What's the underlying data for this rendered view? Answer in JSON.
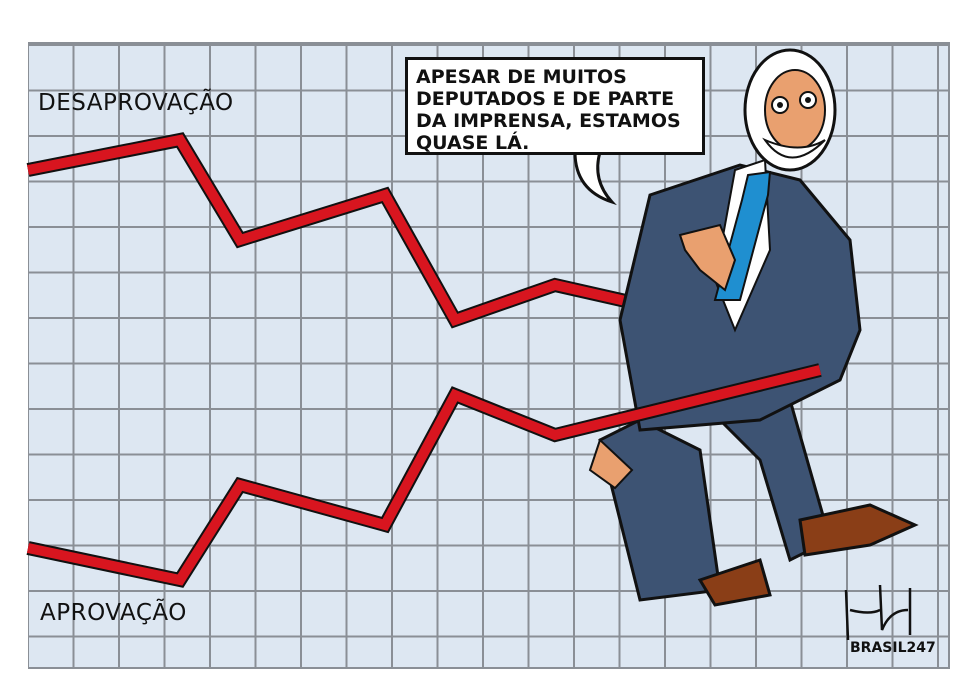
{
  "labels": {
    "disapproval": "DESAPROVAÇÃO",
    "approval": "APROVAÇÃO"
  },
  "speech_bubble": {
    "text": "APESAR DE MUITOS DEPUTADOS E DE PARTE DA IMPRENSA, ESTAMOS QUASE LÁ."
  },
  "credit": "BRASIL247",
  "colors": {
    "line": "#d8151f",
    "grid_bg": "#dde7f2",
    "suit": "#3d5373",
    "tie": "#1f8fd0",
    "shoes": "#8a3e17"
  }
}
